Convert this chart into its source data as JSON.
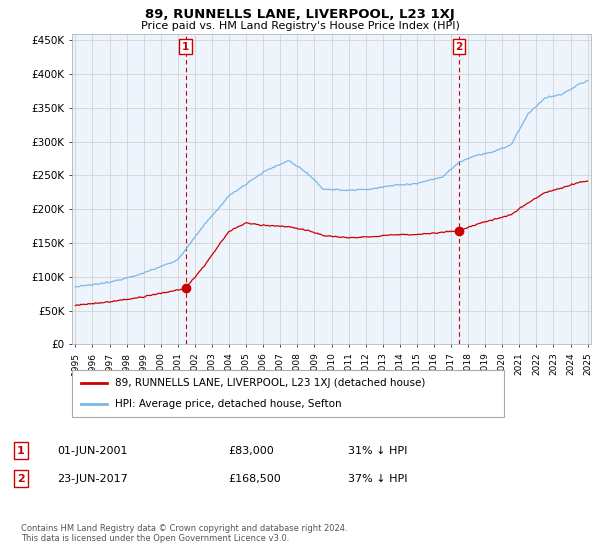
{
  "title": "89, RUNNELLS LANE, LIVERPOOL, L23 1XJ",
  "subtitle": "Price paid vs. HM Land Registry's House Price Index (HPI)",
  "hpi_color": "#7ab8e8",
  "price_color": "#cc0000",
  "vline_color": "#cc0000",
  "bg_color": "#ffffff",
  "plot_bg_color": "#eef4fb",
  "grid_color": "#cccccc",
  "ylim": [
    0,
    460000
  ],
  "yticks": [
    0,
    50000,
    100000,
    150000,
    200000,
    250000,
    300000,
    350000,
    400000,
    450000
  ],
  "ytick_labels": [
    "£0",
    "£50K",
    "£100K",
    "£150K",
    "£200K",
    "£250K",
    "£300K",
    "£350K",
    "£400K",
    "£450K"
  ],
  "x_start_year": 1995,
  "x_end_year": 2025,
  "xtick_years": [
    1995,
    1996,
    1997,
    1998,
    1999,
    2000,
    2001,
    2002,
    2003,
    2004,
    2005,
    2006,
    2007,
    2008,
    2009,
    2010,
    2011,
    2012,
    2013,
    2014,
    2015,
    2016,
    2017,
    2018,
    2019,
    2020,
    2021,
    2022,
    2023,
    2024,
    2025
  ],
  "vline1_x": 2001.45,
  "vline2_x": 2017.48,
  "marker1_x": 2001.45,
  "marker1_y": 83000,
  "marker2_x": 2017.48,
  "marker2_y": 168500,
  "legend_line1": "89, RUNNELLS LANE, LIVERPOOL, L23 1XJ (detached house)",
  "legend_line2": "HPI: Average price, detached house, Sefton",
  "annotation1_num": "1",
  "annotation1_date": "01-JUN-2001",
  "annotation1_price": "£83,000",
  "annotation1_hpi": "31% ↓ HPI",
  "annotation2_num": "2",
  "annotation2_date": "23-JUN-2017",
  "annotation2_price": "£168,500",
  "annotation2_hpi": "37% ↓ HPI",
  "footnote": "Contains HM Land Registry data © Crown copyright and database right 2024.\nThis data is licensed under the Open Government Licence v3.0."
}
